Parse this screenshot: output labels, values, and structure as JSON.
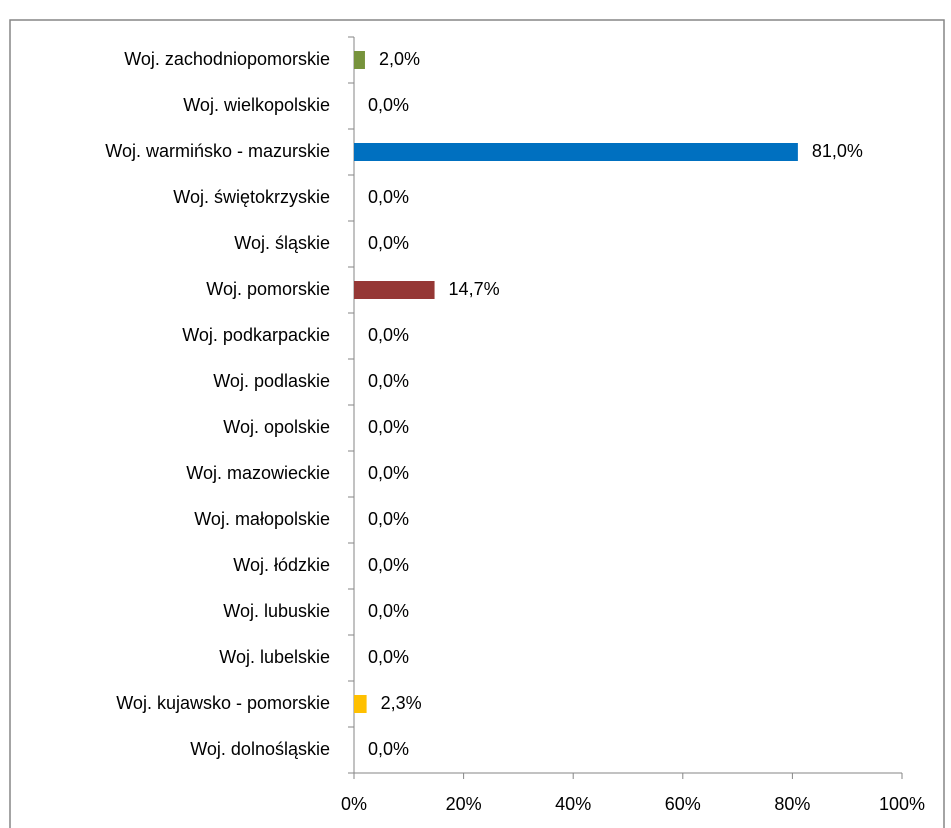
{
  "chart_data": {
    "type": "bar",
    "orientation": "horizontal",
    "categories": [
      "Woj. zachodniopomorskie",
      "Woj. wielkopolskie",
      "Woj. warmińsko - mazurskie",
      "Woj. świętokrzyskie",
      "Woj. śląskie",
      "Woj. pomorskie",
      "Woj. podkarpackie",
      "Woj. podlaskie",
      "Woj. opolskie",
      "Woj. mazowieckie",
      "Woj. małopolskie",
      "Woj. łódzkie",
      "Woj. lubuskie",
      "Woj. lubelskie",
      "Woj. kujawsko - pomorskie",
      "Woj. dolnośląskie"
    ],
    "values": [
      2.0,
      0.0,
      81.0,
      0.0,
      0.0,
      14.7,
      0.0,
      0.0,
      0.0,
      0.0,
      0.0,
      0.0,
      0.0,
      0.0,
      2.3,
      0.0
    ],
    "value_labels": [
      "2,0%",
      "0,0%",
      "81,0%",
      "0,0%",
      "0,0%",
      "14,7%",
      "0,0%",
      "0,0%",
      "0,0%",
      "0,0%",
      "0,0%",
      "0,0%",
      "0,0%",
      "0,0%",
      "2,3%",
      "0,0%"
    ],
    "colors": [
      "#77933c",
      null,
      "#0070c0",
      null,
      null,
      "#953735",
      null,
      null,
      null,
      null,
      null,
      null,
      null,
      null,
      "#ffc000",
      null
    ],
    "xlim": [
      0,
      100
    ],
    "xticks": [
      {
        "value": 0,
        "label": "0%"
      },
      {
        "value": 20,
        "label": "20%"
      },
      {
        "value": 40,
        "label": "40%"
      },
      {
        "value": 60,
        "label": "60%"
      },
      {
        "value": 80,
        "label": "80%"
      },
      {
        "value": 100,
        "label": "100%"
      }
    ],
    "grid": false
  }
}
